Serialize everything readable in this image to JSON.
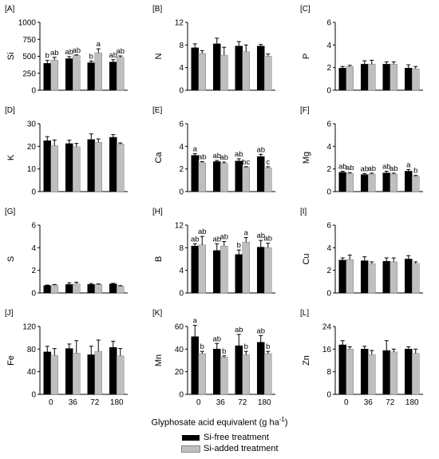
{
  "series_names": [
    "Si-free treatment",
    "Si-added treatment"
  ],
  "series_colors": [
    "#000000",
    "#bfbfbf"
  ],
  "x_title": "Glyphosate acid equivalent (g ha",
  "x_title_sup": "-1",
  "x_title_close": ")",
  "chart_data": [
    {
      "type": "bar",
      "panel": "[A]",
      "ylabel": "Si",
      "categories": [
        "0",
        "36",
        "72",
        "180"
      ],
      "yticks": [
        0,
        250,
        500,
        750,
        1000
      ],
      "ylim": [
        0,
        1000
      ],
      "series": [
        {
          "name": "Si-free treatment",
          "values": [
            395,
            465,
            405,
            415
          ],
          "errors": [
            45,
            30,
            25,
            35
          ]
        },
        {
          "name": "Si-added treatment",
          "values": [
            445,
            510,
            550,
            485
          ],
          "errors": [
            40,
            10,
            60,
            20
          ]
        }
      ],
      "letters": [
        [
          "b",
          "ab",
          "b",
          "ab"
        ],
        [
          "ab",
          "ab",
          "a",
          "ab"
        ]
      ]
    },
    {
      "type": "bar",
      "panel": "[B]",
      "ylabel": "N",
      "categories": [
        "0",
        "36",
        "72",
        "180"
      ],
      "yticks": [
        0,
        4,
        8,
        12
      ],
      "ylim": [
        0,
        12
      ],
      "series": [
        {
          "name": "Si-free treatment",
          "values": [
            7.5,
            8.2,
            7.8,
            7.8
          ],
          "errors": [
            0.7,
            1.0,
            0.8,
            0.3
          ]
        },
        {
          "name": "Si-added treatment",
          "values": [
            6.5,
            6.2,
            6.8,
            6.0
          ],
          "errors": [
            0.5,
            1.4,
            1.2,
            0.4
          ]
        }
      ],
      "letters": null
    },
    {
      "type": "bar",
      "panel": "[C]",
      "ylabel": "P",
      "categories": [
        "0",
        "36",
        "72",
        "180"
      ],
      "yticks": [
        0,
        2,
        4,
        6
      ],
      "ylim": [
        0,
        6
      ],
      "series": [
        {
          "name": "Si-free treatment",
          "values": [
            1.95,
            2.3,
            2.3,
            1.95
          ],
          "errors": [
            0.15,
            0.3,
            0.2,
            0.3
          ]
        },
        {
          "name": "Si-added treatment",
          "values": [
            2.1,
            2.3,
            2.3,
            1.9
          ],
          "errors": [
            0.1,
            0.35,
            0.2,
            0.2
          ]
        }
      ],
      "letters": null
    },
    {
      "type": "bar",
      "panel": "[D]",
      "ylabel": "K",
      "categories": [
        "0",
        "36",
        "72",
        "180"
      ],
      "yticks": [
        0,
        10,
        20,
        30
      ],
      "ylim": [
        0,
        30
      ],
      "series": [
        {
          "name": "Si-free treatment",
          "values": [
            22.5,
            21.2,
            23.0,
            24.0
          ],
          "errors": [
            1.8,
            1.5,
            2.5,
            1.2
          ]
        },
        {
          "name": "Si-added treatment",
          "values": [
            20.3,
            19.8,
            21.8,
            21.0
          ],
          "errors": [
            2.5,
            1.5,
            1.5,
            0.5
          ]
        }
      ],
      "letters": null
    },
    {
      "type": "bar",
      "panel": "[E]",
      "ylabel": "Ca",
      "categories": [
        "0",
        "36",
        "72",
        "180"
      ],
      "yticks": [
        0,
        2,
        4,
        6
      ],
      "ylim": [
        0,
        6
      ],
      "series": [
        {
          "name": "Si-free treatment",
          "values": [
            3.2,
            2.65,
            2.7,
            3.1
          ],
          "errors": [
            0.15,
            0.1,
            0.2,
            0.2
          ]
        },
        {
          "name": "Si-added treatment",
          "values": [
            2.55,
            2.5,
            2.15,
            2.1
          ],
          "errors": [
            0.1,
            0.1,
            0.05,
            0.1
          ]
        }
      ],
      "letters": [
        [
          "a",
          "ab",
          "ab",
          "ab"
        ],
        [
          "ab",
          "ab",
          "bc",
          "c"
        ]
      ]
    },
    {
      "type": "bar",
      "panel": "[F]",
      "ylabel": "Mg",
      "categories": [
        "0",
        "36",
        "72",
        "180"
      ],
      "yticks": [
        0,
        2,
        4,
        6
      ],
      "ylim": [
        0,
        6
      ],
      "series": [
        {
          "name": "Si-free treatment",
          "values": [
            1.7,
            1.5,
            1.65,
            1.8
          ],
          "errors": [
            0.1,
            0.1,
            0.15,
            0.15
          ]
        },
        {
          "name": "Si-added treatment",
          "values": [
            1.6,
            1.55,
            1.55,
            1.35
          ],
          "errors": [
            0.08,
            0.08,
            0.08,
            0.08
          ]
        }
      ],
      "letters": [
        [
          "ab",
          "ab",
          "ab",
          "a"
        ],
        [
          "ab",
          "ab",
          "ab",
          "b"
        ]
      ]
    },
    {
      "type": "bar",
      "panel": "[G]",
      "ylabel": "S",
      "categories": [
        "0",
        "36",
        "72",
        "180"
      ],
      "yticks": [
        0,
        2,
        4,
        6
      ],
      "ylim": [
        0,
        6
      ],
      "series": [
        {
          "name": "Si-free treatment",
          "values": [
            0.65,
            0.75,
            0.75,
            0.8
          ],
          "errors": [
            0.05,
            0.15,
            0.08,
            0.05
          ]
        },
        {
          "name": "Si-added treatment",
          "values": [
            0.7,
            0.8,
            0.75,
            0.6
          ],
          "errors": [
            0.05,
            0.15,
            0.05,
            0.05
          ]
        }
      ],
      "letters": null
    },
    {
      "type": "bar",
      "panel": "[H]",
      "ylabel": "B",
      "categories": [
        "0",
        "36",
        "72",
        "180"
      ],
      "yticks": [
        0,
        4,
        8,
        12
      ],
      "ylim": [
        0,
        12
      ],
      "series": [
        {
          "name": "Si-free treatment",
          "values": [
            8.3,
            7.5,
            6.8,
            8.1
          ],
          "errors": [
            0.4,
            1.2,
            0.8,
            1.2
          ]
        },
        {
          "name": "Si-added treatment",
          "values": [
            8.5,
            8.3,
            9.0,
            8.0
          ],
          "errors": [
            1.5,
            0.8,
            0.8,
            0.8
          ]
        }
      ],
      "letters": [
        [
          "ab",
          "ab",
          "b",
          "ab"
        ],
        [
          "ab",
          "ab",
          "a",
          "ab"
        ]
      ]
    },
    {
      "type": "bar",
      "panel": "[I]",
      "ylabel": "Cu",
      "categories": [
        "0",
        "36",
        "72",
        "180"
      ],
      "yticks": [
        0,
        2,
        4,
        6
      ],
      "ylim": [
        0,
        6
      ],
      "series": [
        {
          "name": "Si-free treatment",
          "values": [
            2.9,
            2.85,
            2.8,
            3.0
          ],
          "errors": [
            0.2,
            0.35,
            0.3,
            0.3
          ]
        },
        {
          "name": "Si-added treatment",
          "values": [
            2.95,
            2.6,
            2.75,
            2.6
          ],
          "errors": [
            0.4,
            0.15,
            0.35,
            0.15
          ]
        }
      ],
      "letters": null
    },
    {
      "type": "bar",
      "panel": "[J]",
      "ylabel": "Fe",
      "categories": [
        "0",
        "36",
        "72",
        "180"
      ],
      "yticks": [
        0,
        40,
        80,
        120
      ],
      "ylim": [
        0,
        120
      ],
      "series": [
        {
          "name": "Si-free treatment",
          "values": [
            75,
            81,
            70,
            83
          ],
          "errors": [
            10,
            8,
            15,
            11
          ]
        },
        {
          "name": "Si-added treatment",
          "values": [
            69,
            73,
            76,
            68
          ],
          "errors": [
            12,
            22,
            20,
            13
          ]
        }
      ],
      "letters": null
    },
    {
      "type": "bar",
      "panel": "[K]",
      "ylabel": "Mn",
      "categories": [
        "0",
        "36",
        "72",
        "180"
      ],
      "yticks": [
        0,
        20,
        40,
        60
      ],
      "ylim": [
        0,
        60
      ],
      "series": [
        {
          "name": "Si-free treatment",
          "values": [
            51,
            40,
            43,
            46
          ],
          "errors": [
            10,
            5,
            10,
            6
          ]
        },
        {
          "name": "Si-added treatment",
          "values": [
            36,
            33,
            35,
            36
          ],
          "errors": [
            2,
            1,
            3,
            2
          ]
        }
      ],
      "letters": [
        [
          "a",
          "ab",
          "ab",
          "ab"
        ],
        [
          "b",
          "b",
          "b",
          "b"
        ]
      ]
    },
    {
      "type": "bar",
      "panel": "[L]",
      "ylabel": "Zn",
      "categories": [
        "0",
        "36",
        "72",
        "180"
      ],
      "yticks": [
        0,
        8,
        16,
        24
      ],
      "ylim": [
        0,
        24
      ],
      "series": [
        {
          "name": "Si-free treatment",
          "values": [
            17.5,
            16.0,
            15.5,
            16.0
          ],
          "errors": [
            1.5,
            1.0,
            3.5,
            0.8
          ]
        },
        {
          "name": "Si-added treatment",
          "values": [
            16.0,
            14.0,
            15.0,
            14.5
          ],
          "errors": [
            0.8,
            1.5,
            1.0,
            1.5
          ]
        }
      ],
      "letters": null
    }
  ]
}
